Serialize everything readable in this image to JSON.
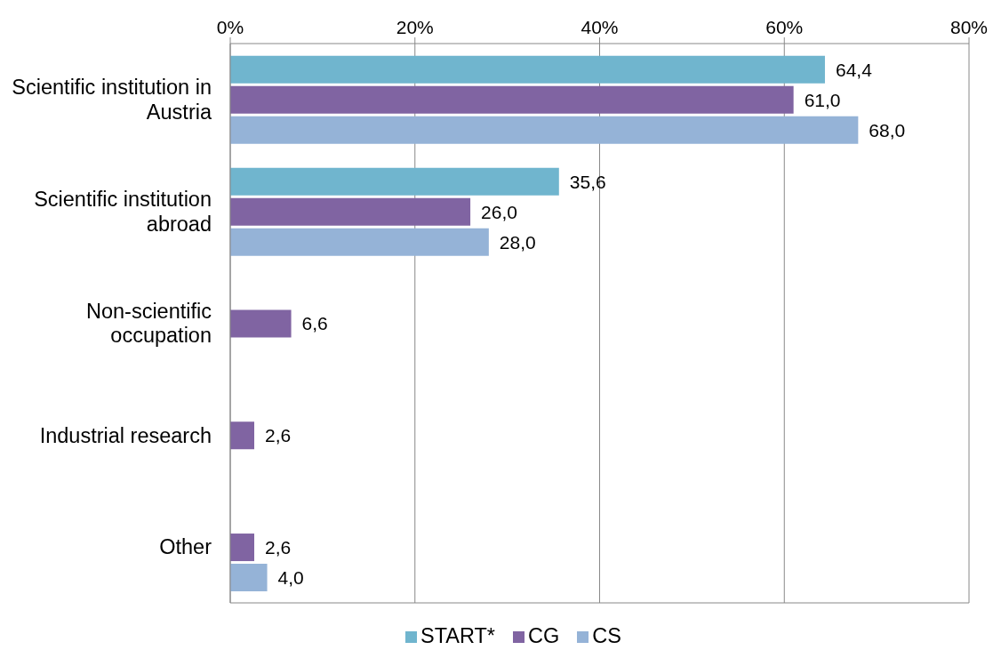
{
  "chart_data": {
    "type": "bar",
    "orientation": "horizontal",
    "categories": [
      "Scientific institution in Austria",
      "Scientific institution abroad",
      "Non-scientific occupation",
      "Industrial research",
      "Other"
    ],
    "series": [
      {
        "name": "START*",
        "color": "#70b5ce",
        "values": [
          64.4,
          35.6,
          null,
          null,
          null
        ],
        "value_labels": [
          "64,4",
          "35,6",
          null,
          null,
          null
        ]
      },
      {
        "name": "CG",
        "color": "#8064a2",
        "values": [
          61.0,
          26.0,
          6.6,
          2.6,
          2.6
        ],
        "value_labels": [
          "61,0",
          "26,0",
          "6,6",
          "2,6",
          "2,6"
        ]
      },
      {
        "name": "CS",
        "color": "#95b3d7",
        "values": [
          68.0,
          28.0,
          null,
          null,
          4.0
        ],
        "value_labels": [
          "68,0",
          "28,0",
          null,
          null,
          "4,0"
        ]
      }
    ],
    "xlim": [
      0,
      80
    ],
    "xticks": [
      {
        "value": 0,
        "label": "0%"
      },
      {
        "value": 20,
        "label": "20%"
      },
      {
        "value": 40,
        "label": "40%"
      },
      {
        "value": 60,
        "label": "60%"
      },
      {
        "value": 80,
        "label": "80%"
      }
    ],
    "grid": "x",
    "legend": "bottom"
  }
}
